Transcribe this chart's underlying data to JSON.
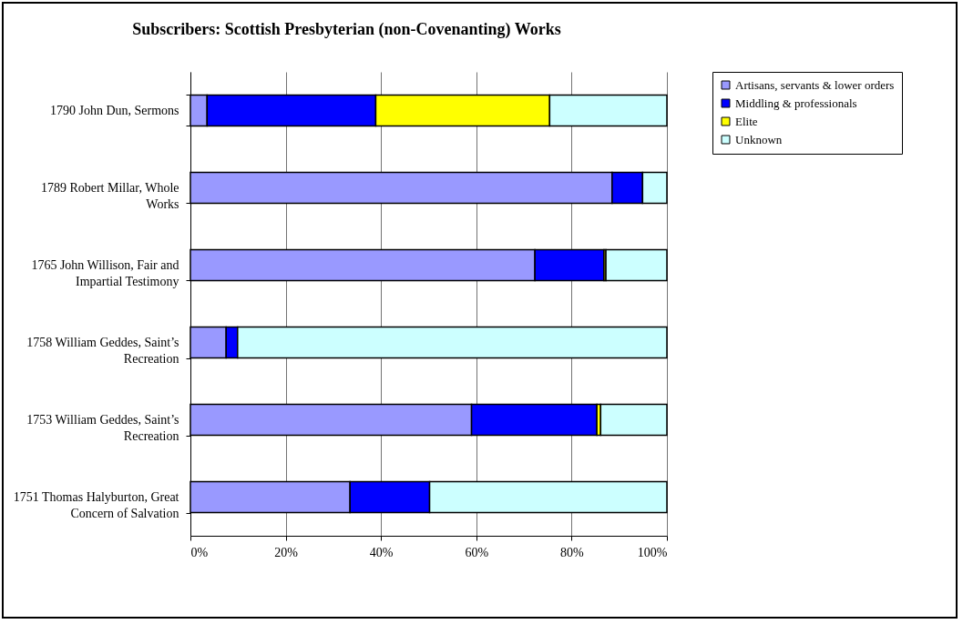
{
  "chart_data": {
    "type": "bar",
    "orientation": "horizontal",
    "stacked": true,
    "title": "Subscribers: Scottish Presbyterian (non-Covenanting) Works",
    "categories": [
      "1790 John Dun, Sermons",
      "1789 Robert Millar, Whole Works",
      "1765 John Willison, Fair and Impartial Testimony",
      "1758 William Geddes, Saint’s Recreation",
      "1753 William Geddes, Saint’s Recreation",
      "1751 Thomas Halyburton, Great Concern of Salvation"
    ],
    "series": [
      {
        "name": "Artisans, servants & lower orders",
        "color": "#9999ff",
        "values": [
          3.5,
          88.5,
          72.3,
          7.5,
          59.0,
          33.5
        ]
      },
      {
        "name": "Middling & professionals",
        "color": "#0000ff",
        "values": [
          35.4,
          6.4,
          14.5,
          2.4,
          26.3,
          16.7
        ]
      },
      {
        "name": "Elite",
        "color": "#ffff00",
        "values": [
          36.5,
          0,
          0.4,
          0,
          0.8,
          0
        ]
      },
      {
        "name": "Unknown",
        "color": "#ccffff",
        "values": [
          24.6,
          5.1,
          12.8,
          90.1,
          13.9,
          49.8
        ]
      }
    ],
    "xlim": [
      0,
      100
    ],
    "xticks": [
      {
        "value": 0,
        "label": "0%"
      },
      {
        "value": 20,
        "label": "20%"
      },
      {
        "value": 40,
        "label": "40%"
      },
      {
        "value": 60,
        "label": "60%"
      },
      {
        "value": 80,
        "label": "80%"
      },
      {
        "value": 100,
        "label": "100%"
      }
    ],
    "grid": "x",
    "legend": "right"
  }
}
